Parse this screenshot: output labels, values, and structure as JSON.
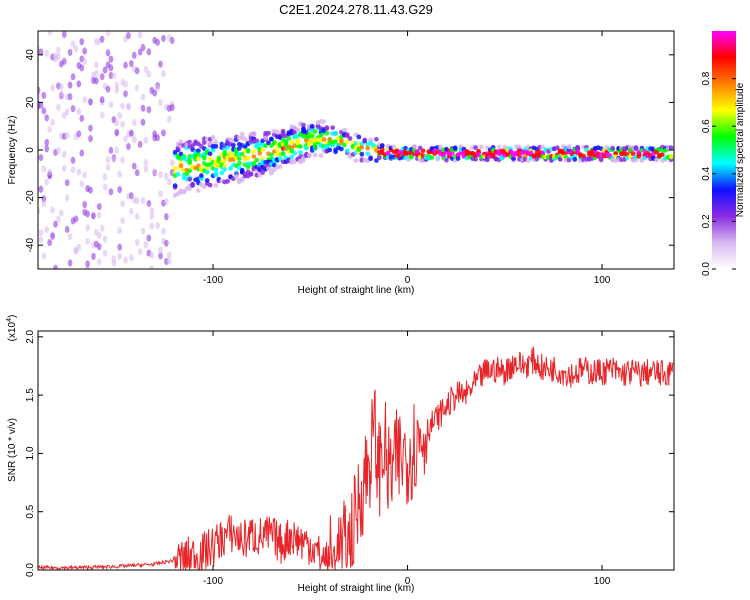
{
  "figure": {
    "title": "C2E1.2024.278.11.43.G29"
  },
  "chart_data": [
    {
      "type": "heatmap",
      "xlabel": "Height of straight line (km)",
      "ylabel": "Frequency (Hz)",
      "xlim": [
        -190,
        137
      ],
      "ylim": [
        -50,
        50
      ],
      "x_ticks": [
        -100,
        0,
        100
      ],
      "x_tick_labels": [
        "-100",
        "0",
        "100"
      ],
      "y_ticks": [
        -40,
        -20,
        0,
        20,
        40
      ],
      "y_tick_labels": [
        "-40",
        "-20",
        "0",
        "20",
        "40"
      ],
      "grid": false,
      "colorbar": {
        "label": "Normalized spectral amplitude",
        "range": [
          0,
          1
        ],
        "ticks": [
          0.0,
          0.2,
          0.4,
          0.6,
          0.8
        ],
        "tick_labels": [
          "0.0",
          "0.2",
          "0.4",
          "0.6",
          "0.8"
        ],
        "colors": [
          "#ffffff",
          "#d8b8f0",
          "#8a2be2",
          "#1010ff",
          "#00ffff",
          "#00ff00",
          "#ffff00",
          "#ff8000",
          "#ff0000",
          "#ff00ff"
        ]
      },
      "ridge": {
        "x": [
          -150,
          -130,
          -110,
          -90,
          -70,
          -55,
          -45,
          -38,
          -30,
          -20,
          -10,
          0,
          20,
          40,
          60,
          80,
          100,
          120,
          137
        ],
        "y": [
          -12,
          -9,
          -6,
          -4,
          -1,
          3,
          5,
          4,
          2,
          0,
          -1,
          -1.5,
          -1.5,
          -1.5,
          -1.5,
          -1.5,
          -1.5,
          -1.5,
          -1.5
        ]
      }
    },
    {
      "type": "line",
      "xlabel": "Height of straight line (km)",
      "ylabel": "SNR (10 * v/v)",
      "y_multiplier_label": "(x10",
      "y_multiplier_exp": "4",
      "y_multiplier_close": ")",
      "xlim": [
        -190,
        137
      ],
      "ylim": [
        0,
        2.05
      ],
      "x_ticks": [
        -100,
        0,
        100
      ],
      "x_tick_labels": [
        "-100",
        "0",
        "100"
      ],
      "y_ticks": [
        0,
        0.5,
        1.0,
        1.5,
        2.0
      ],
      "y_tick_labels": [
        "0.0",
        "0.5",
        "1.0",
        "1.5",
        "2.0"
      ],
      "grid": false,
      "series": [
        {
          "color": "#e8262a",
          "x": [
            -190,
            -170,
            -150,
            -130,
            -115,
            -105,
            -100,
            -95,
            -90,
            -85,
            -80,
            -75,
            -70,
            -65,
            -60,
            -55,
            -50,
            -45,
            -40,
            -35,
            -30,
            -27,
            -25,
            -22,
            -20,
            -17,
            -15,
            -12,
            -10,
            -5,
            0,
            5,
            10,
            15,
            20,
            25,
            30,
            35,
            40,
            45,
            50,
            55,
            60,
            65,
            70,
            75,
            80,
            85,
            90,
            95,
            100,
            105,
            110,
            115,
            120,
            125,
            130,
            137
          ],
          "y": [
            0.02,
            0.02,
            0.03,
            0.05,
            0.1,
            0.15,
            0.2,
            0.28,
            0.32,
            0.25,
            0.3,
            0.28,
            0.3,
            0.22,
            0.3,
            0.25,
            0.22,
            0.12,
            0.05,
            0.1,
            0.2,
            0.4,
            0.6,
            0.8,
            0.9,
            1.2,
            0.85,
            1.1,
            0.8,
            0.95,
            1.0,
            1.1,
            1.2,
            1.3,
            1.4,
            1.5,
            1.5,
            1.6,
            1.7,
            1.72,
            1.7,
            1.78,
            1.75,
            1.8,
            1.72,
            1.73,
            1.7,
            1.68,
            1.72,
            1.7,
            1.7,
            1.72,
            1.68,
            1.7,
            1.68,
            1.7,
            1.68,
            1.7
          ]
        }
      ]
    }
  ]
}
